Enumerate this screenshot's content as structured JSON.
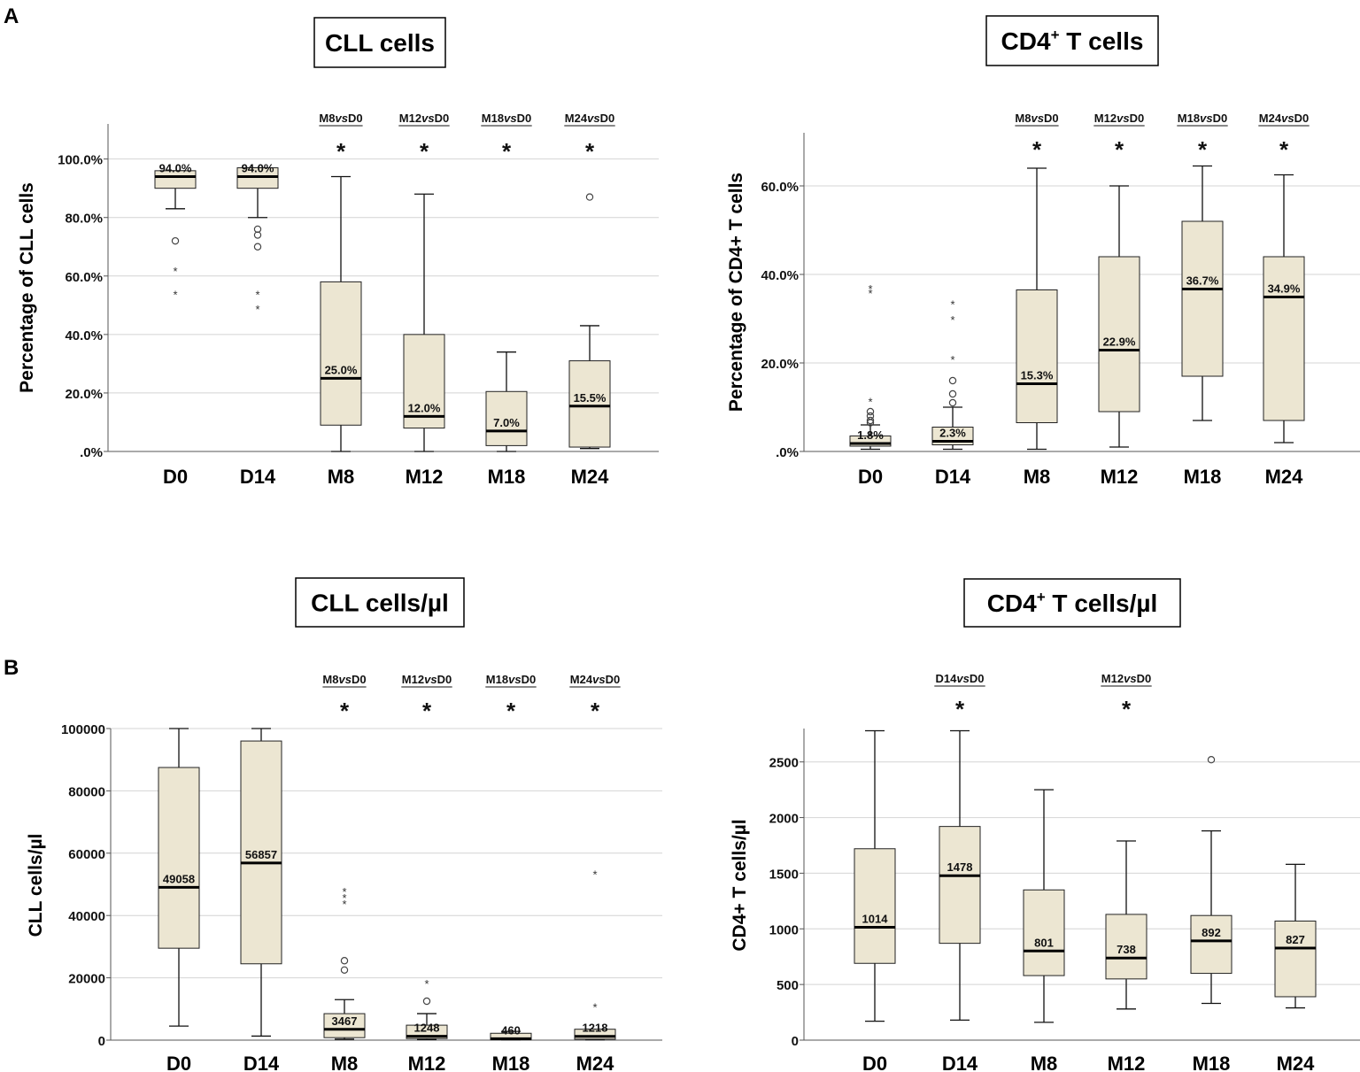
{
  "panel_labels": {
    "a": "A",
    "b": "B"
  },
  "chart_data": [
    {
      "id": "c1",
      "type": "box",
      "title": "CLL cells",
      "ylabel": "Percentage of CLL cells",
      "ylim": [
        0,
        112
      ],
      "ytick_values": [
        0,
        20,
        40,
        60,
        80,
        100
      ],
      "ytick_labels": [
        ".0%",
        "20.0%",
        "40.0%",
        "60.0%",
        "80.0%",
        "100.0%"
      ],
      "categories": [
        "D0",
        "D14",
        "M8",
        "M12",
        "M18",
        "M24"
      ],
      "boxes": [
        {
          "cat": "D0",
          "min": 83,
          "q1": 90,
          "median": 94,
          "q3": 96,
          "max": 96,
          "median_label": "94.0%",
          "outliers_circle": [
            72
          ],
          "outliers_star": [
            62,
            54
          ]
        },
        {
          "cat": "D14",
          "min": 80,
          "q1": 90,
          "median": 94,
          "q3": 97,
          "max": 97,
          "median_label": "94.0%",
          "outliers_circle": [
            76,
            74,
            70
          ],
          "outliers_star": [
            54,
            49
          ]
        },
        {
          "cat": "M8",
          "min": 0,
          "q1": 9,
          "median": 25,
          "q3": 58,
          "max": 94,
          "median_label": "25.0%",
          "outliers_circle": [],
          "outliers_star": []
        },
        {
          "cat": "M12",
          "min": 0,
          "q1": 8,
          "median": 12,
          "q3": 40,
          "max": 88,
          "median_label": "12.0%",
          "outliers_circle": [],
          "outliers_star": []
        },
        {
          "cat": "M18",
          "min": 0,
          "q1": 2,
          "median": 7,
          "q3": 20.5,
          "max": 34,
          "median_label": "7.0%",
          "outliers_circle": [],
          "outliers_star": []
        },
        {
          "cat": "M24",
          "min": 1,
          "q1": 1.5,
          "median": 15.5,
          "q3": 31,
          "max": 43,
          "median_label": "15.5%",
          "outliers_circle": [
            87
          ],
          "outliers_star": []
        }
      ],
      "comparisons": [
        {
          "label": "M8vsD0",
          "cat": "M8"
        },
        {
          "label": "M12vsD0",
          "cat": "M12"
        },
        {
          "label": "M18vsD0",
          "cat": "M18"
        },
        {
          "label": "M24vsD0",
          "cat": "M24"
        }
      ],
      "significance_mark": "*"
    },
    {
      "id": "c2",
      "type": "box",
      "title": "CD4",
      "title_sup": "+",
      "title_rest": " T cells",
      "ylabel": "Percentage of CD4+ T cells",
      "ylim": [
        0,
        72
      ],
      "ytick_values": [
        0,
        20,
        40,
        60
      ],
      "ytick_labels": [
        ".0%",
        "20.0%",
        "40.0%",
        "60.0%"
      ],
      "categories": [
        "D0",
        "D14",
        "M8",
        "M12",
        "M18",
        "M24"
      ],
      "boxes": [
        {
          "cat": "D0",
          "min": 0.5,
          "q1": 1.2,
          "median": 1.8,
          "q3": 3.5,
          "max": 6,
          "median_label": "1.8%",
          "outliers_circle": [
            9,
            8,
            7,
            6.5
          ],
          "outliers_star": [
            37,
            36,
            11.5
          ]
        },
        {
          "cat": "D14",
          "min": 0.5,
          "q1": 1.5,
          "median": 2.3,
          "q3": 5.5,
          "max": 10,
          "median_label": "2.3%",
          "outliers_circle": [
            16,
            13,
            11
          ],
          "outliers_star": [
            33.5,
            30,
            21
          ]
        },
        {
          "cat": "M8",
          "min": 0.5,
          "q1": 6.5,
          "median": 15.3,
          "q3": 36.5,
          "max": 64,
          "median_label": "15.3%",
          "outliers_circle": [],
          "outliers_star": []
        },
        {
          "cat": "M12",
          "min": 1,
          "q1": 9,
          "median": 22.9,
          "q3": 44,
          "max": 60,
          "median_label": "22.9%",
          "outliers_circle": [],
          "outliers_star": []
        },
        {
          "cat": "M18",
          "min": 7,
          "q1": 17,
          "median": 36.7,
          "q3": 52,
          "max": 64.5,
          "median_label": "36.7%",
          "outliers_circle": [],
          "outliers_star": []
        },
        {
          "cat": "M24",
          "min": 2,
          "q1": 7,
          "median": 34.9,
          "q3": 44,
          "max": 62.5,
          "median_label": "34.9%",
          "outliers_circle": [],
          "outliers_star": []
        }
      ],
      "comparisons": [
        {
          "label": "M8vsD0",
          "cat": "M8"
        },
        {
          "label": "M12vsD0",
          "cat": "M12"
        },
        {
          "label": "M18vsD0",
          "cat": "M18"
        },
        {
          "label": "M24vsD0",
          "cat": "M24"
        }
      ],
      "significance_mark": "*"
    },
    {
      "id": "c3",
      "type": "box",
      "title": "CLL cells/µl",
      "ylabel": "CLL cells/µl",
      "ylim": [
        0,
        100000
      ],
      "ytick_values": [
        0,
        20000,
        40000,
        60000,
        80000,
        100000
      ],
      "ytick_labels": [
        "0",
        "20000",
        "40000",
        "60000",
        "80000",
        "100000"
      ],
      "categories": [
        "D0",
        "D14",
        "M8",
        "M12",
        "M18",
        "M24"
      ],
      "boxes": [
        {
          "cat": "D0",
          "min": 4500,
          "q1": 29500,
          "median": 49058,
          "q3": 87500,
          "max": 100000,
          "median_label": "49058",
          "outliers_circle": [],
          "outliers_star": []
        },
        {
          "cat": "D14",
          "min": 1300,
          "q1": 24500,
          "median": 56857,
          "q3": 96000,
          "max": 100000,
          "median_label": "56857",
          "outliers_circle": [],
          "outliers_star": []
        },
        {
          "cat": "M8",
          "min": 300,
          "q1": 800,
          "median": 3467,
          "q3": 8500,
          "max": 13000,
          "median_label": "3467",
          "outliers_circle": [
            25500,
            22500
          ],
          "outliers_star": [
            48000,
            46000,
            44000
          ]
        },
        {
          "cat": "M12",
          "min": 200,
          "q1": 500,
          "median": 1248,
          "q3": 4800,
          "max": 8500,
          "median_label": "1248",
          "outliers_circle": [
            12500
          ],
          "outliers_star": [
            18500
          ]
        },
        {
          "cat": "M18",
          "min": 100,
          "q1": 200,
          "median": 460,
          "q3": 2200,
          "max": 2800,
          "median_label": "460",
          "outliers_circle": [],
          "outliers_star": []
        },
        {
          "cat": "M24",
          "min": 100,
          "q1": 300,
          "median": 1218,
          "q3": 3500,
          "max": 3500,
          "median_label": "1218",
          "outliers_circle": [],
          "outliers_star": [
            53500,
            11000
          ]
        }
      ],
      "comparisons": [
        {
          "label": "M8vsD0",
          "cat": "M8"
        },
        {
          "label": "M12vsD0",
          "cat": "M12"
        },
        {
          "label": "M18vsD0",
          "cat": "M18"
        },
        {
          "label": "M24vsD0",
          "cat": "M24"
        }
      ],
      "significance_mark": "*"
    },
    {
      "id": "c4",
      "type": "box",
      "title": "CD4",
      "title_sup": "+",
      "title_rest": " T cells/µl",
      "ylabel": "CD4+ T cells/µl",
      "ylim": [
        0,
        2800
      ],
      "ytick_values": [
        0,
        500,
        1000,
        1500,
        2000,
        2500
      ],
      "ytick_labels": [
        "0",
        "500",
        "1000",
        "1500",
        "2000",
        "2500"
      ],
      "categories": [
        "D0",
        "D14",
        "M8",
        "M12",
        "M18",
        "M24"
      ],
      "boxes": [
        {
          "cat": "D0",
          "min": 170,
          "q1": 690,
          "median": 1014,
          "q3": 1720,
          "max": 2780,
          "median_label": "1014",
          "outliers_circle": [],
          "outliers_star": []
        },
        {
          "cat": "D14",
          "min": 180,
          "q1": 870,
          "median": 1478,
          "q3": 1920,
          "max": 2780,
          "median_label": "1478",
          "outliers_circle": [],
          "outliers_star": []
        },
        {
          "cat": "M8",
          "min": 160,
          "q1": 580,
          "median": 801,
          "q3": 1350,
          "max": 2250,
          "median_label": "801",
          "outliers_circle": [],
          "outliers_star": []
        },
        {
          "cat": "M12",
          "min": 280,
          "q1": 550,
          "median": 738,
          "q3": 1130,
          "max": 1790,
          "median_label": "738",
          "outliers_circle": [],
          "outliers_star": []
        },
        {
          "cat": "M18",
          "min": 330,
          "q1": 600,
          "median": 892,
          "q3": 1120,
          "max": 1880,
          "median_label": "892",
          "outliers_circle": [
            2520
          ],
          "outliers_star": []
        },
        {
          "cat": "M24",
          "min": 290,
          "q1": 390,
          "median": 827,
          "q3": 1070,
          "max": 1580,
          "median_label": "827",
          "outliers_circle": [],
          "outliers_star": []
        }
      ],
      "comparisons": [
        {
          "label": "D14vsD0",
          "cat": "D14"
        },
        {
          "label": "M12vsD0",
          "cat": "M12"
        }
      ],
      "significance_mark": "*"
    }
  ]
}
